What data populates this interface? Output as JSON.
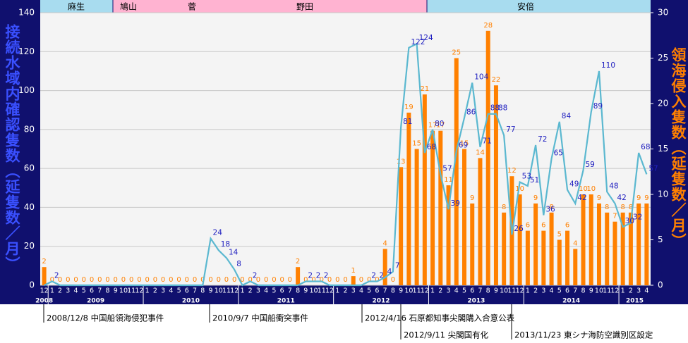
{
  "chart_data": {
    "type": "bar-line",
    "eras": [
      {
        "name": "麻生",
        "color": "#a8dcef"
      },
      {
        "name": "鳩山",
        "color": "#ffb3d1"
      },
      {
        "name": "菅",
        "color": "#ffb3d1"
      },
      {
        "name": "野田",
        "color": "#ffb3d1"
      },
      {
        "name": "安倍",
        "color": "#a8dcef"
      }
    ],
    "y_label": "接続水域内確認隻数（延隻数／月）",
    "y2_label": "領海侵入隻数（延隻数／月）",
    "categories": [
      "12",
      "1",
      "2",
      "3",
      "4",
      "5",
      "6",
      "7",
      "8",
      "9",
      "10",
      "11",
      "12",
      "1",
      "2",
      "3",
      "4",
      "5",
      "6",
      "7",
      "8",
      "9",
      "10",
      "11",
      "12",
      "1",
      "2",
      "3",
      "4",
      "5",
      "6",
      "7",
      "8",
      "9",
      "10",
      "11",
      "12",
      "1",
      "2",
      "3",
      "4",
      "5",
      "6",
      "7",
      "8",
      "9",
      "10",
      "11",
      "12",
      "1",
      "2",
      "3",
      "4",
      "5",
      "6",
      "7",
      "8",
      "9",
      "10",
      "11",
      "12",
      "1",
      "2",
      "3",
      "4",
      "5",
      "6",
      "7",
      "8",
      "9",
      "10",
      "11",
      "12",
      "1",
      "2",
      "3",
      "4"
    ],
    "years": [
      "2008",
      "2009",
      "2010",
      "2011",
      "2012",
      "2013",
      "2014",
      "2015"
    ],
    "series": [
      {
        "type": "bar",
        "axis": "y2",
        "color": "#ff8000",
        "values": [
          2,
          0,
          0,
          0,
          0,
          0,
          0,
          0,
          0,
          0,
          0,
          0,
          0,
          0,
          0,
          0,
          0,
          0,
          0,
          0,
          0,
          0,
          0,
          0,
          0,
          0,
          0,
          0,
          0,
          0,
          0,
          0,
          2,
          0,
          0,
          0,
          0,
          0,
          0,
          1,
          0,
          0,
          0,
          4,
          0,
          13,
          19,
          15,
          21,
          17,
          17,
          11,
          25,
          15,
          9,
          14,
          28,
          22,
          8,
          12,
          10,
          6,
          9,
          6,
          8,
          5,
          6,
          4,
          10,
          10,
          9,
          8,
          7,
          8,
          8,
          9,
          9
        ]
      },
      {
        "type": "line",
        "axis": "y",
        "color": "#5bb8d0",
        "label_color": "#2020c0",
        "values": [
          0,
          2,
          0,
          0,
          0,
          0,
          0,
          0,
          0,
          0,
          0,
          0,
          0,
          0,
          0,
          0,
          0,
          0,
          0,
          0,
          0,
          24,
          18,
          14,
          8,
          0,
          2,
          0,
          0,
          0,
          0,
          0,
          0,
          2,
          2,
          2,
          0,
          0,
          0,
          0,
          0,
          2,
          2,
          4,
          7,
          81,
          122,
          124,
          68,
          80,
          57,
          39,
          69,
          86,
          104,
          71,
          88,
          88,
          77,
          26,
          53,
          51,
          72,
          36,
          65,
          84,
          49,
          42,
          59,
          89,
          110,
          48,
          42,
          30,
          32,
          68,
          57
        ]
      }
    ],
    "ylim": [
      0,
      140
    ],
    "yticks": [
      0,
      20,
      40,
      60,
      80,
      100,
      120,
      140
    ],
    "y2lim": [
      0,
      30
    ],
    "y2ticks": [
      0,
      5,
      10,
      15,
      20,
      25,
      30
    ],
    "grid": true,
    "annotations": [
      "2008/12/8 中国船領海侵犯事件",
      "2010/9/7 中国船衝突事件",
      "2012/4/16 石原都知事尖閣購入合意公表",
      "2012/9/11 尖閣国有化",
      "2013/11/23 東シナ海防空識別区設定"
    ]
  }
}
